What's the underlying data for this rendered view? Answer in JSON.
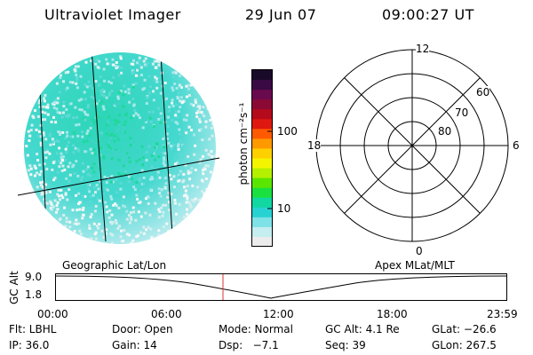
{
  "header": {
    "title": "Ultraviolet Imager",
    "date": "29 Jun 07",
    "time": "09:00:27 UT"
  },
  "colorbar": {
    "unit_label": "photon cm⁻²s⁻¹",
    "tick_labels": [
      "100",
      "10"
    ],
    "colors": [
      "#1a0a2a",
      "#3a0a44",
      "#6a0a4e",
      "#8a0a34",
      "#b50a1c",
      "#de1810",
      "#ff5a00",
      "#ff9900",
      "#ffd000",
      "#f4f400",
      "#b4f000",
      "#5ae600",
      "#1ae040",
      "#10d8a0",
      "#28d2d2",
      "#7ee2e6",
      "#c4eef0",
      "#ececec"
    ]
  },
  "polar": {
    "mlt_labels": {
      "top": "12",
      "left": "18",
      "right": "6",
      "bottom": "0"
    },
    "lat_labels": [
      "60",
      "70",
      "80"
    ]
  },
  "timeline": {
    "left_title": "Geographic Lat/Lon",
    "right_title": "Apex MLat/MLT",
    "axis_title": "GC Alt",
    "y_top": "9.0",
    "y_bottom": "1.8",
    "x_ticks": [
      "00:00",
      "06:00",
      "12:00",
      "18:00",
      "23:59"
    ]
  },
  "info": {
    "flt": "Flt: LBHL",
    "door": "Door: Open",
    "mode": "Mode: Normal",
    "gcalt": "GC Alt: 4.1 Re",
    "glat": "GLat: −26.6",
    "ip": "IP: 36.0",
    "gain": "Gain: 14",
    "dsp": "Dsp:   −7.1",
    "seq": "Seq: 39",
    "glon": "GLon: 267.5"
  }
}
